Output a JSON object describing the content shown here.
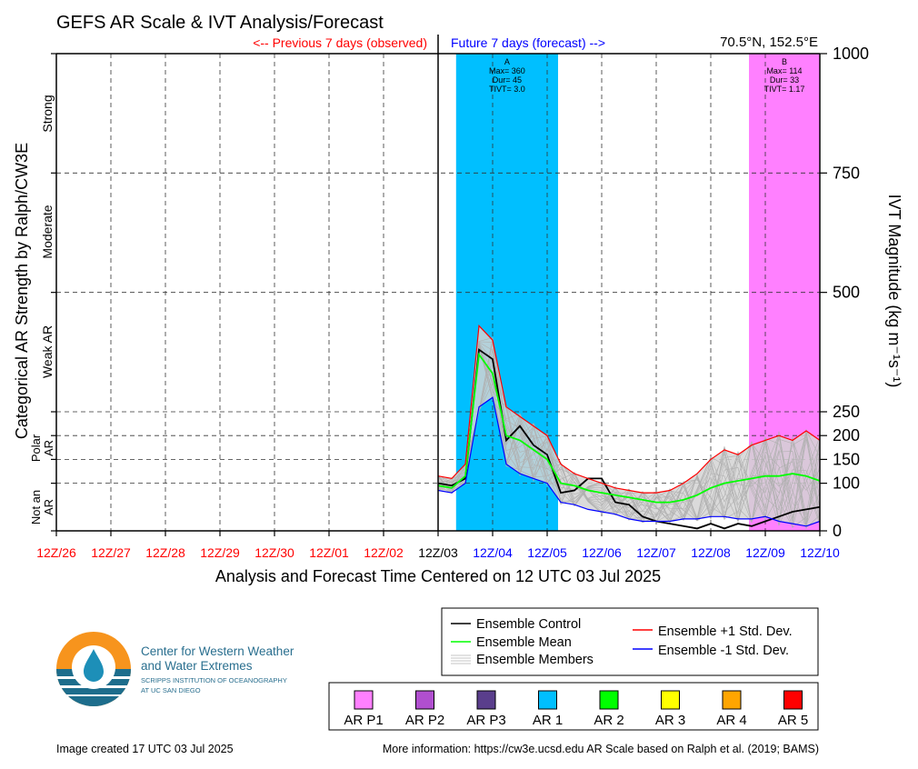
{
  "header": {
    "title": "GEFS AR Scale & IVT Analysis/Forecast",
    "prev_label": "<-- Previous 7 days (observed)",
    "future_label": "Future 7 days (forecast) -->",
    "location": "70.5°N, 152.5°E"
  },
  "chart_data": {
    "type": "line",
    "xlabel": "Analysis and Forecast Time Centered on 12 UTC 03 Jul 2025",
    "ylabel_left": "Categorical AR Strength by Ralph/CW3E",
    "ylabel_right": "IVT Magnitude (kg m⁻¹s⁻¹)",
    "y_ticks": [
      0,
      100,
      150,
      200,
      250,
      500,
      750,
      1000
    ],
    "y_tick_labels": [
      "0",
      "100",
      "150",
      "200",
      "250",
      "500",
      "750",
      "1000"
    ],
    "y_scale": "piecewise: 0-250 on a stretched scale, 250-1000 linear",
    "x_range_days": [
      -7,
      7
    ],
    "x_tick_labels": [
      "12Z/26",
      "12Z/27",
      "12Z/28",
      "12Z/29",
      "12Z/30",
      "12Z/01",
      "12Z/02",
      "12Z/03",
      "12Z/04",
      "12Z/05",
      "12Z/06",
      "12Z/07",
      "12Z/08",
      "12Z/09",
      "12Z/10"
    ],
    "x_tick_colors": [
      "#ff0000",
      "#ff0000",
      "#ff0000",
      "#ff0000",
      "#ff0000",
      "#ff0000",
      "#ff0000",
      "#000000",
      "#0000ff",
      "#0000ff",
      "#0000ff",
      "#0000ff",
      "#0000ff",
      "#0000ff",
      "#0000ff"
    ],
    "categories": [
      {
        "label": "Strong",
        "range": [
          750,
          1000
        ]
      },
      {
        "label": "Moderate",
        "range": [
          500,
          750
        ]
      },
      {
        "label": "Weak AR",
        "range": [
          250,
          500
        ]
      },
      {
        "label": "Polar AR",
        "range": [
          100,
          250
        ]
      },
      {
        "label": "Not an AR",
        "range": [
          0,
          100
        ]
      }
    ],
    "ar_events": [
      {
        "label": "A",
        "max": "Max= 360",
        "dur": "Dur= 45",
        "tivt": "TIVT= 3.0",
        "start_day": 0.33,
        "end_day": 2.2,
        "color": "#00bfff",
        "category": "AR 1"
      },
      {
        "label": "B",
        "max": "Max= 114",
        "dur": "Dur= 33",
        "tivt": "TIVT= 1.17",
        "start_day": 5.7,
        "end_day": 7.0,
        "color": "#ff80ff",
        "category": "AR P1"
      }
    ],
    "series": [
      {
        "name": "Ensemble Control",
        "color": "#000000",
        "x": [
          0,
          0.25,
          0.5,
          0.75,
          1,
          1.25,
          1.5,
          1.75,
          2,
          2.25,
          2.5,
          2.75,
          3,
          3.25,
          3.5,
          3.75,
          4,
          4.25,
          4.5,
          4.75,
          5,
          5.25,
          5.5,
          5.75,
          6,
          6.25,
          6.5,
          6.75,
          7
        ],
        "y": [
          100,
          95,
          110,
          380,
          360,
          190,
          220,
          180,
          160,
          80,
          85,
          110,
          110,
          60,
          55,
          30,
          20,
          15,
          10,
          5,
          15,
          5,
          15,
          10,
          20,
          30,
          40,
          45,
          50
        ]
      },
      {
        "name": "Ensemble Mean",
        "color": "#00ff00",
        "x": [
          0,
          0.25,
          0.5,
          0.75,
          1,
          1.25,
          1.5,
          1.75,
          2,
          2.25,
          2.5,
          2.75,
          3,
          3.25,
          3.5,
          3.75,
          4,
          4.25,
          4.5,
          4.75,
          5,
          5.25,
          5.5,
          5.75,
          6,
          6.25,
          6.5,
          6.75,
          7
        ],
        "y": [
          95,
          90,
          115,
          370,
          330,
          200,
          190,
          170,
          150,
          100,
          95,
          85,
          80,
          75,
          70,
          65,
          60,
          60,
          65,
          75,
          90,
          100,
          105,
          110,
          115,
          115,
          120,
          115,
          105
        ]
      },
      {
        "name": "Ensemble +1 Std. Dev.",
        "color": "#ff0000",
        "x": [
          0,
          0.25,
          0.5,
          0.75,
          1,
          1.25,
          1.5,
          1.75,
          2,
          2.25,
          2.5,
          2.75,
          3,
          3.25,
          3.5,
          3.75,
          4,
          4.25,
          4.5,
          4.75,
          5,
          5.25,
          5.5,
          5.75,
          6,
          6.25,
          6.5,
          6.75,
          7
        ],
        "y": [
          115,
          110,
          140,
          430,
          400,
          260,
          240,
          220,
          200,
          140,
          120,
          110,
          100,
          90,
          85,
          80,
          80,
          85,
          100,
          120,
          150,
          170,
          160,
          180,
          190,
          200,
          190,
          210,
          190
        ]
      },
      {
        "name": "Ensemble -1 Std. Dev.",
        "color": "#0000ff",
        "x": [
          0,
          0.25,
          0.5,
          0.75,
          1,
          1.25,
          1.5,
          1.75,
          2,
          2.25,
          2.5,
          2.75,
          3,
          3.25,
          3.5,
          3.75,
          4,
          4.25,
          4.5,
          4.75,
          5,
          5.25,
          5.5,
          5.75,
          6,
          6.25,
          6.5,
          6.75,
          7
        ],
        "y": [
          85,
          80,
          100,
          260,
          280,
          140,
          120,
          110,
          100,
          60,
          55,
          45,
          40,
          35,
          25,
          20,
          20,
          20,
          25,
          25,
          30,
          30,
          25,
          25,
          30,
          20,
          15,
          10,
          20
        ]
      }
    ],
    "members_color": "#b0b0b0",
    "legend": {
      "entries": [
        "Ensemble Control",
        "Ensemble Mean",
        "Ensemble Members",
        "Ensemble +1 Std. Dev.",
        "Ensemble -1 Std. Dev."
      ],
      "placement": "bottom-right"
    },
    "ar_scale_legend": [
      {
        "label": "AR P1",
        "color": "#ff80ff"
      },
      {
        "label": "AR P2",
        "color": "#b04fcf"
      },
      {
        "label": "AR P3",
        "color": "#5a3e8c"
      },
      {
        "label": "AR 1",
        "color": "#00bfff"
      },
      {
        "label": "AR 2",
        "color": "#00ff00"
      },
      {
        "label": "AR 3",
        "color": "#ffff00"
      },
      {
        "label": "AR 4",
        "color": "#ffa500"
      },
      {
        "label": "AR 5",
        "color": "#ff0000"
      }
    ]
  },
  "logo": {
    "line1": "Center for Western Weather",
    "line2": "and Water Extremes",
    "line3": "SCRIPPS INSTITUTION OF OCEANOGRAPHY",
    "line4": "AT UC SAN DIEGO"
  },
  "footer": {
    "created": "Image created 17 UTC 03 Jul 2025",
    "info": "More information: https://cw3e.ucsd.edu AR Scale based on Ralph et al. (2019; BAMS)"
  }
}
